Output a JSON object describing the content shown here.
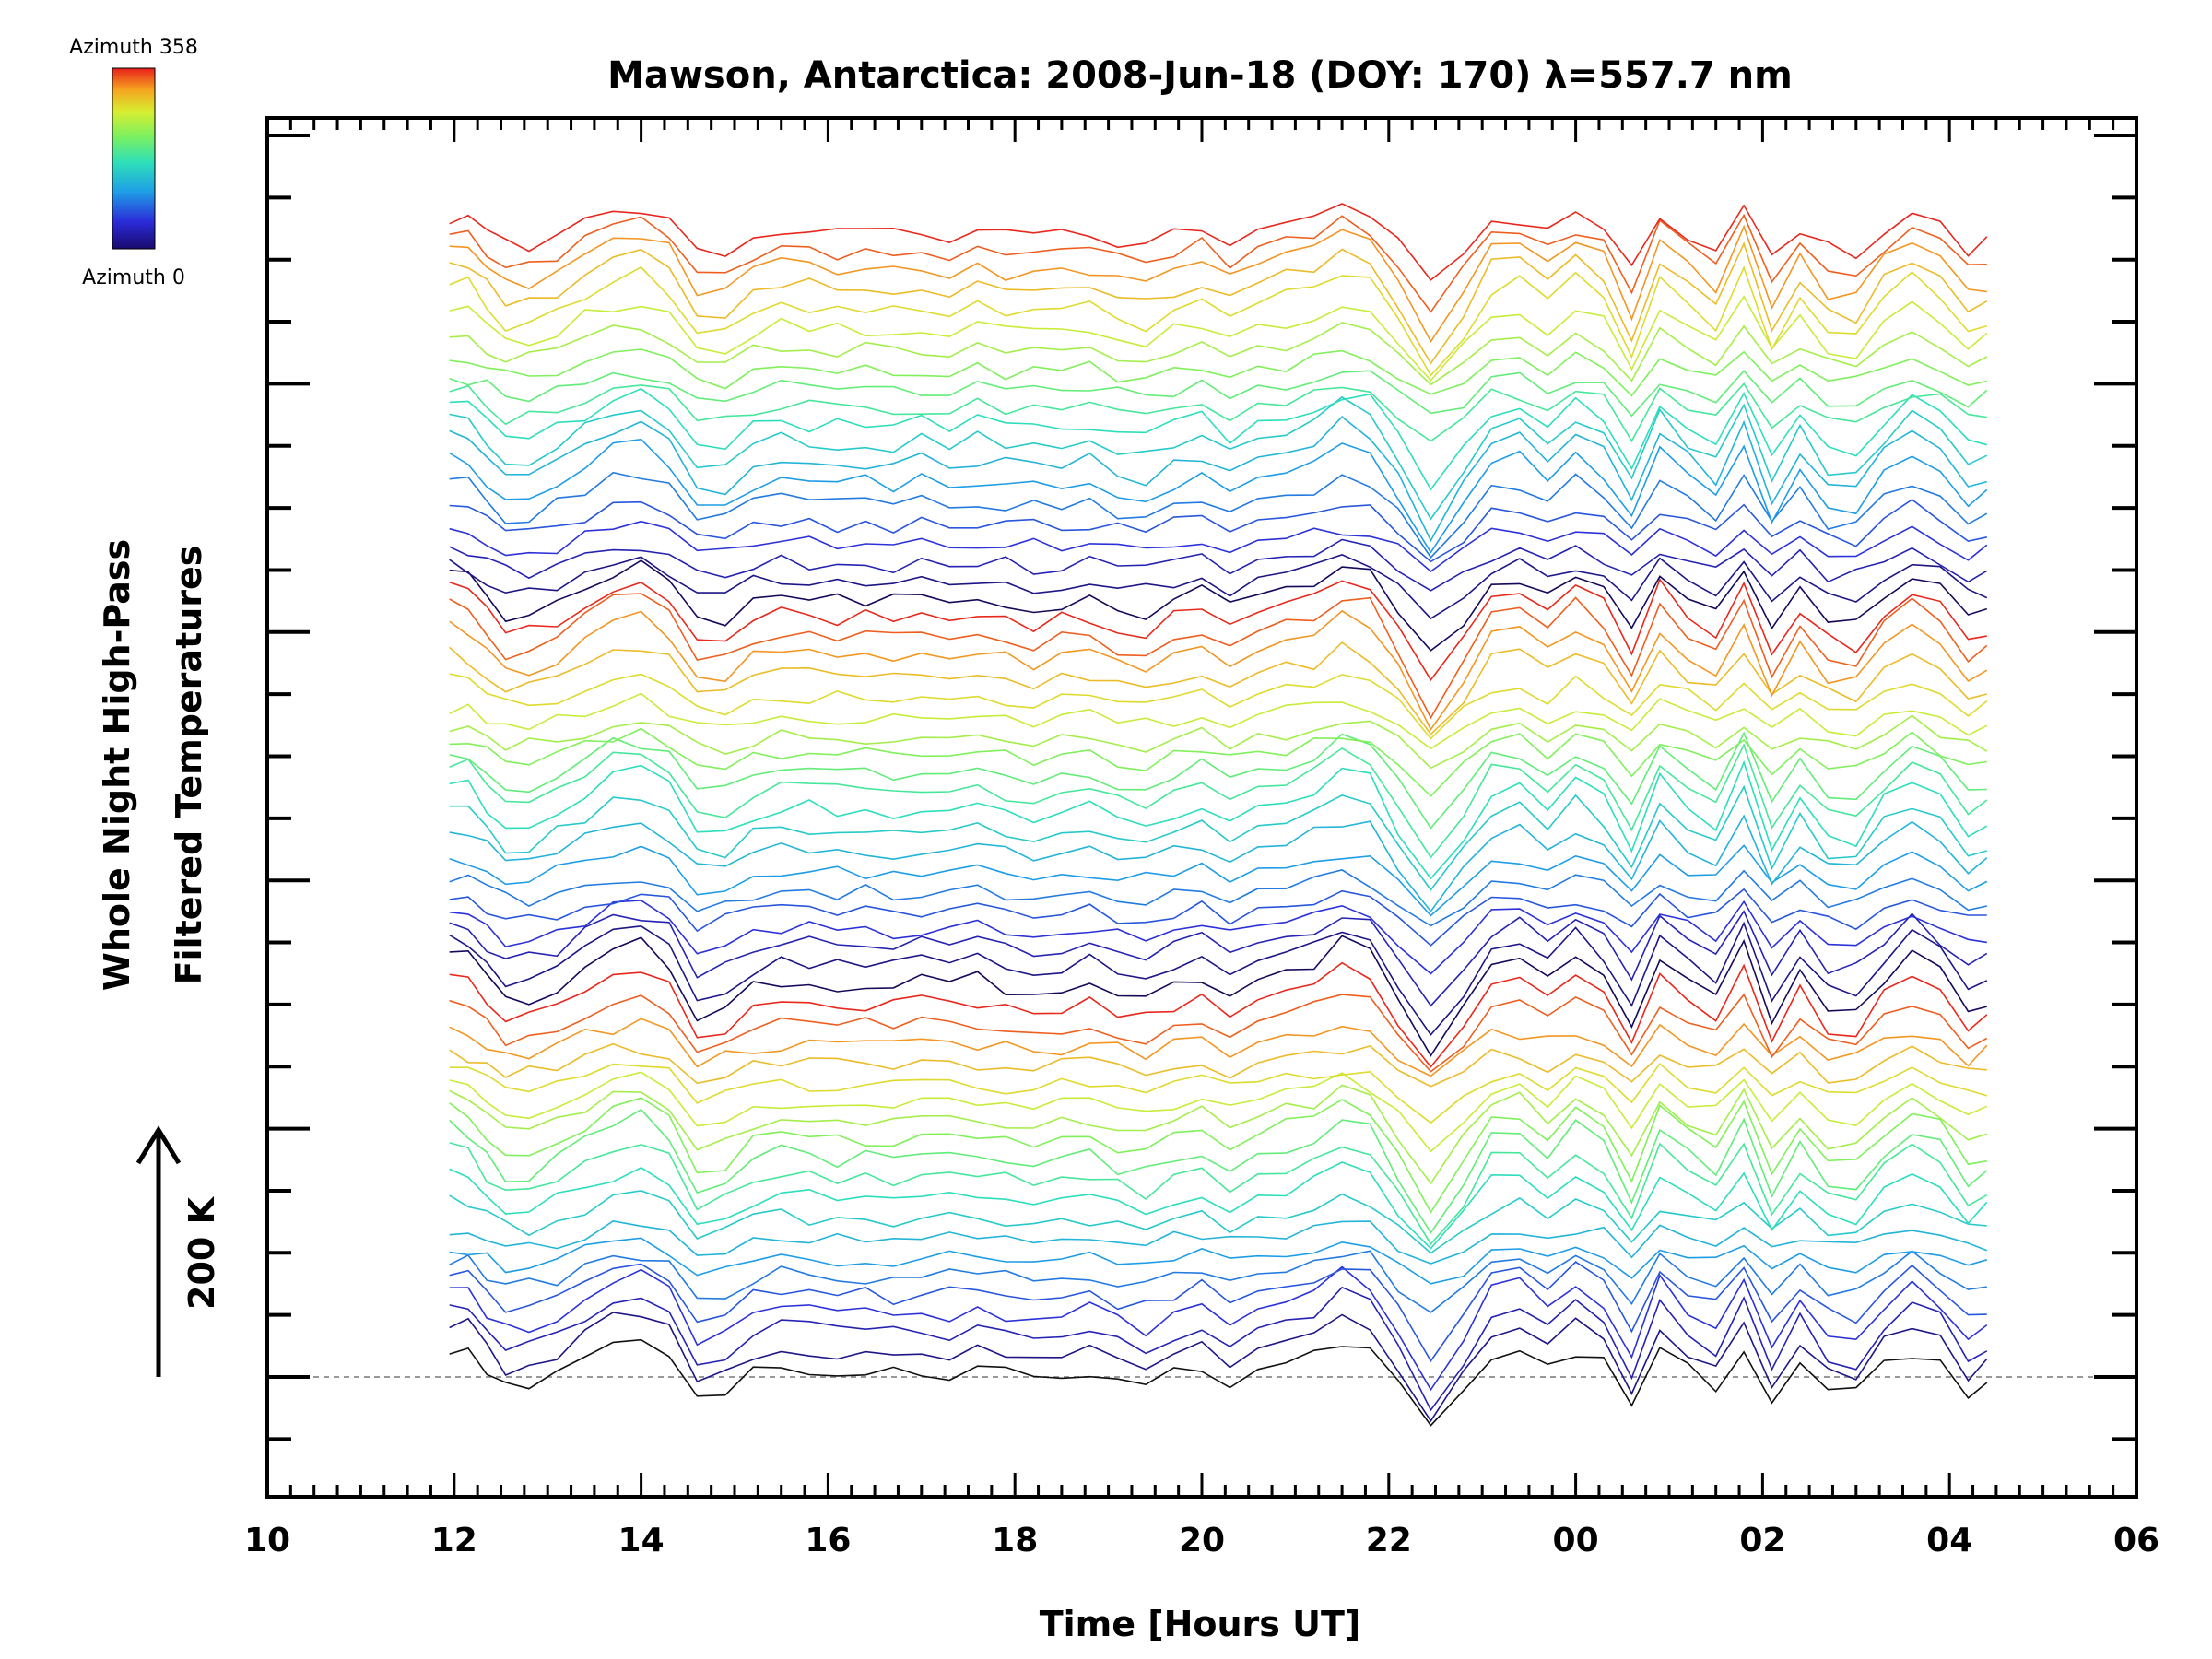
{
  "chart_data": {
    "type": "line",
    "title": "Mawson, Antarctica: 2008-Jun-18 (DOY: 170) λ=557.7 nm",
    "xlabel": "Time [Hours UT]",
    "ylabel_line1": "Whole Night High-Pass",
    "ylabel_line2": "Filtered Temperatures",
    "scale_label": "200 K",
    "colorbar": {
      "top_label": "Azimuth 358",
      "bottom_label": "Azimuth 0",
      "colormap": "rainbow"
    },
    "x_axis": {
      "ticks": [
        "10",
        "12",
        "14",
        "16",
        "18",
        "20",
        "22",
        "00",
        "02",
        "04",
        "06"
      ]
    },
    "grid": false,
    "legend": "colorbar top-left",
    "series_count": 60,
    "baseline_style": "dashed gray",
    "x_hours": [
      11.95,
      12.15,
      12.35,
      12.55,
      12.8,
      13.1,
      13.4,
      13.7,
      14.0,
      14.3,
      14.6,
      14.9,
      15.2,
      15.5,
      15.8,
      16.1,
      16.4,
      16.7,
      17.0,
      17.3,
      17.6,
      17.9,
      18.2,
      18.5,
      18.8,
      19.1,
      19.4,
      19.7,
      20.0,
      20.3,
      20.6,
      20.9,
      21.2,
      21.5,
      21.8,
      22.1,
      22.45,
      22.8,
      23.1,
      23.4,
      23.7,
      24.0,
      24.3,
      24.6,
      24.9,
      25.2,
      25.5,
      25.8,
      26.1,
      26.4,
      26.7,
      27.0,
      27.3,
      27.6,
      27.9,
      28.2,
      28.4
    ],
    "base_signal": [
      20,
      18,
      5,
      -6,
      -5,
      2,
      12,
      22,
      25,
      15,
      -12,
      -10,
      2,
      6,
      5,
      3,
      4,
      2,
      5,
      3,
      6,
      2,
      0,
      2,
      5,
      -2,
      -5,
      3,
      8,
      -3,
      5,
      10,
      15,
      25,
      20,
      -5,
      -35,
      -10,
      15,
      18,
      5,
      20,
      10,
      -20,
      20,
      5,
      -5,
      25,
      -15,
      10,
      -10,
      -12,
      8,
      20,
      10,
      -10,
      -5
    ]
  }
}
